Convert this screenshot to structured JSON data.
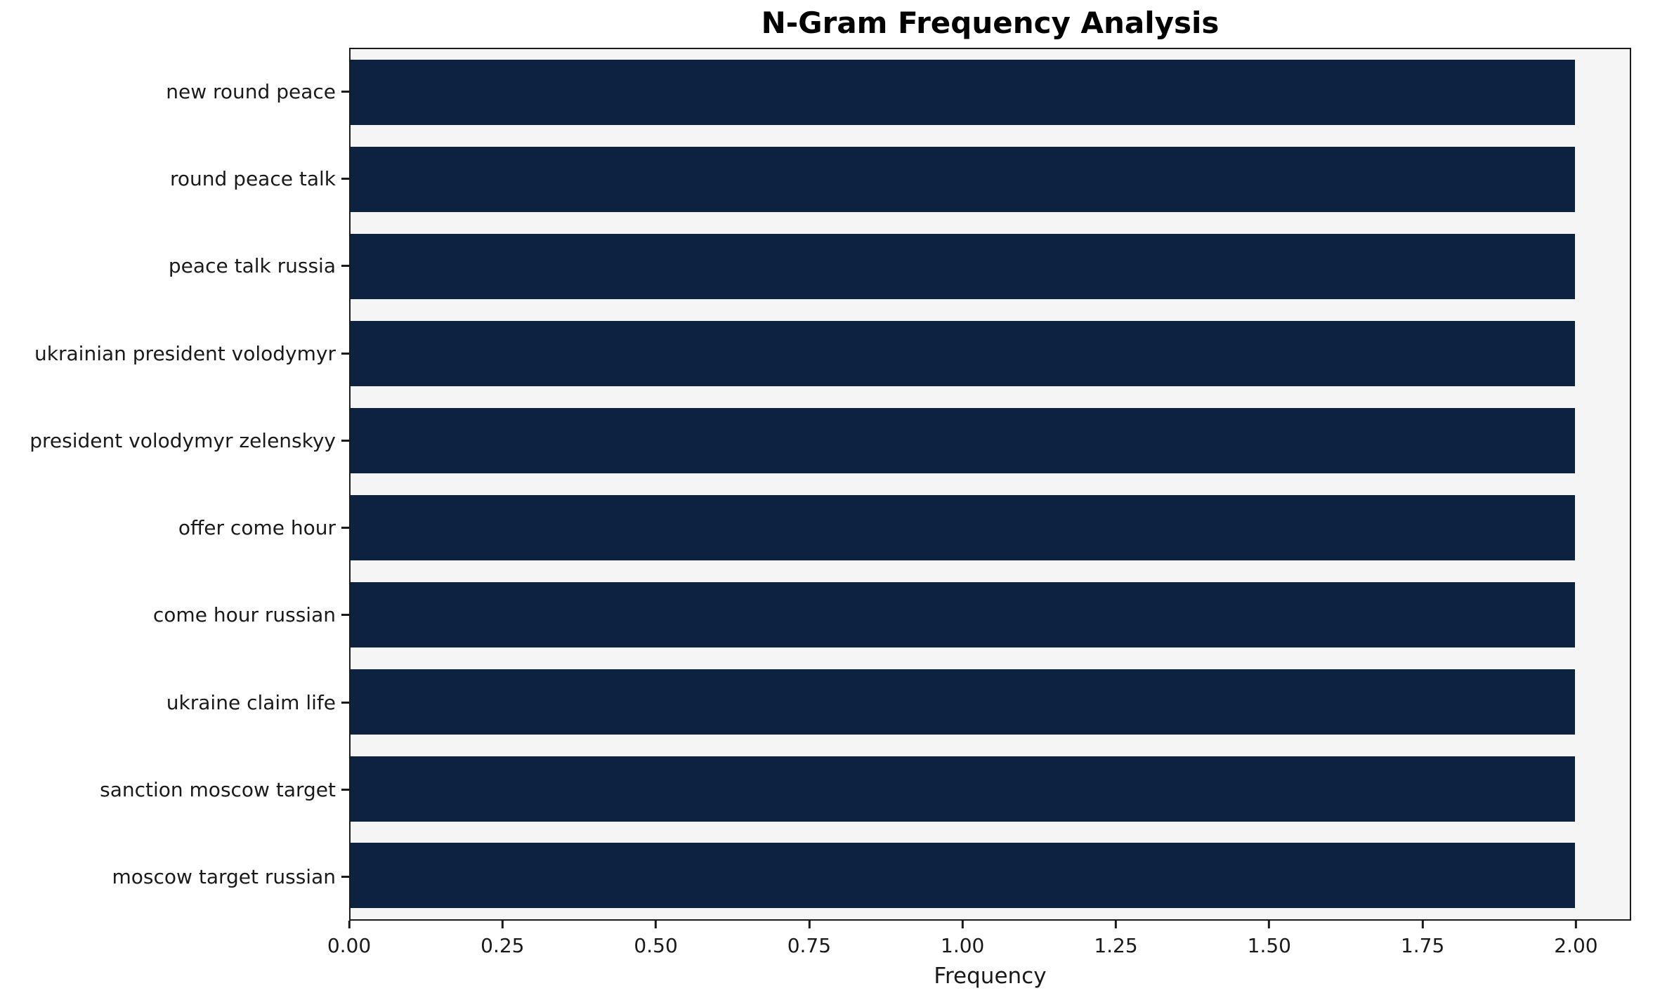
{
  "title": "N-Gram Frequency Analysis",
  "chart_data": {
    "type": "bar",
    "orientation": "horizontal",
    "title": "N-Gram Frequency Analysis",
    "xlabel": "Frequency",
    "ylabel": "",
    "categories": [
      "new round peace",
      "round peace talk",
      "peace talk russia",
      "ukrainian president volodymyr",
      "president volodymyr zelenskyy",
      "offer come hour",
      "come hour russian",
      "ukraine claim life",
      "sanction moscow target",
      "moscow target russian"
    ],
    "values": [
      2,
      2,
      2,
      2,
      2,
      2,
      2,
      2,
      2,
      2
    ],
    "xlim": [
      0,
      2.09
    ],
    "xticks": [
      "0.00",
      "0.25",
      "0.50",
      "0.75",
      "1.00",
      "1.25",
      "1.50",
      "1.75",
      "2.00"
    ],
    "grid": false,
    "legend": "none",
    "bar_color": "#0d2240",
    "plot_bg": "#f5f5f5"
  }
}
